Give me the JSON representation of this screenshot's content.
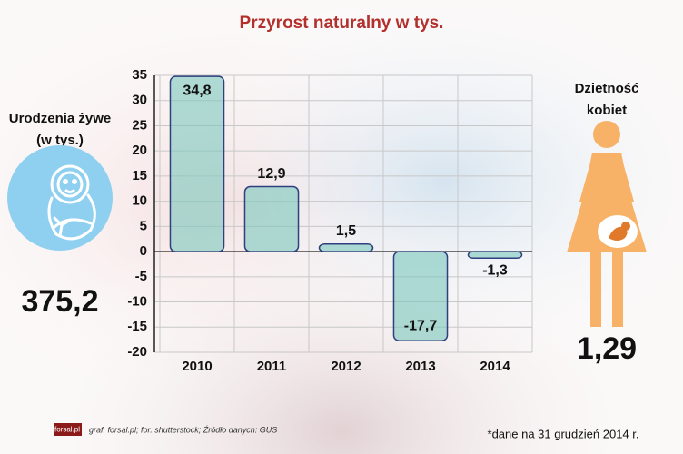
{
  "chart_data": {
    "type": "bar",
    "title": "Przyrost naturalny w tys.",
    "categories": [
      "2010",
      "2011",
      "2012",
      "2013",
      "2014"
    ],
    "values": [
      34.8,
      12.9,
      1.5,
      -17.7,
      -1.3
    ],
    "value_labels": [
      "34,8",
      "12,9",
      "1,5",
      "-17,7",
      "-1,3"
    ],
    "color": "#7cc8bd",
    "ylim": [
      -20,
      35
    ],
    "yticks": [
      -20,
      -15,
      -10,
      -5,
      0,
      5,
      10,
      15,
      20,
      25,
      30,
      35
    ],
    "grid": true
  },
  "births": {
    "label": [
      "Urodzenia żywe",
      "(w tys.)"
    ],
    "value": "375,2"
  },
  "fertility": {
    "label": [
      "Dzietność",
      "kobiet"
    ],
    "value": "1,29"
  },
  "footer": {
    "logo": "forsal.pl",
    "source": "graf. forsal.pl; for. shutterstock;  Źródło danych:  GUS",
    "note": "*dane na 31 grudzień 2014 r."
  }
}
